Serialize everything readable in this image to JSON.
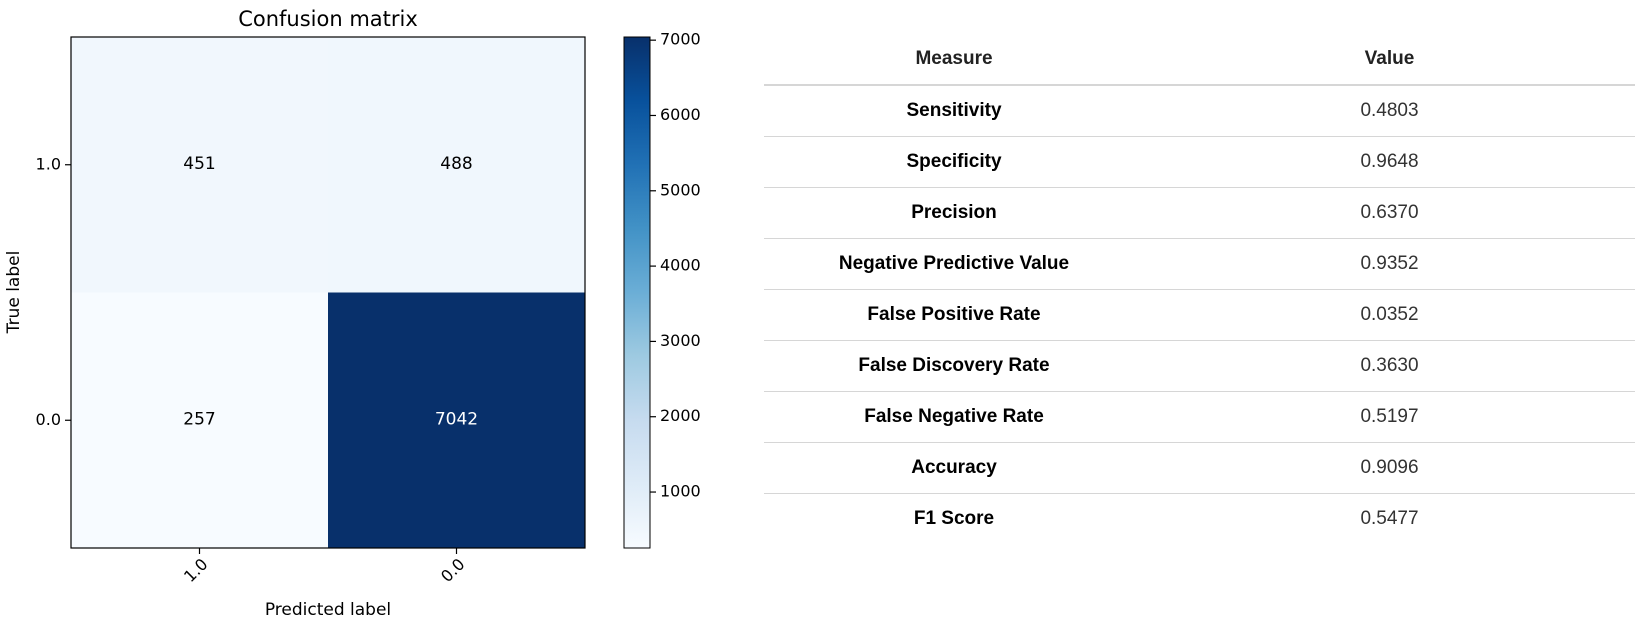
{
  "chart_data": {
    "type": "heatmap",
    "title": "Confusion matrix",
    "xlabel": "Predicted label",
    "ylabel": "True label",
    "x_categories": [
      "1.0",
      "0.0"
    ],
    "y_categories": [
      "1.0",
      "0.0"
    ],
    "matrix": [
      [
        451,
        488
      ],
      [
        257,
        7042
      ]
    ],
    "colormap": "Blues",
    "colorbar": {
      "ticks": [
        1000,
        2000,
        3000,
        4000,
        5000,
        6000,
        7000
      ],
      "range": [
        257,
        7042
      ]
    },
    "grid": false
  },
  "metrics_table": {
    "headers": [
      "Measure",
      "Value"
    ],
    "rows": [
      {
        "measure": "Sensitivity",
        "value": "0.4803"
      },
      {
        "measure": "Specificity",
        "value": "0.9648"
      },
      {
        "measure": "Precision",
        "value": "0.6370"
      },
      {
        "measure": "Negative Predictive Value",
        "value": "0.9352"
      },
      {
        "measure": "False Positive Rate",
        "value": "0.0352"
      },
      {
        "measure": "False Discovery Rate",
        "value": "0.3630"
      },
      {
        "measure": "False Negative Rate",
        "value": "0.5197"
      },
      {
        "measure": "Accuracy",
        "value": "0.9096"
      },
      {
        "measure": "F1 Score",
        "value": "0.5477"
      }
    ]
  }
}
